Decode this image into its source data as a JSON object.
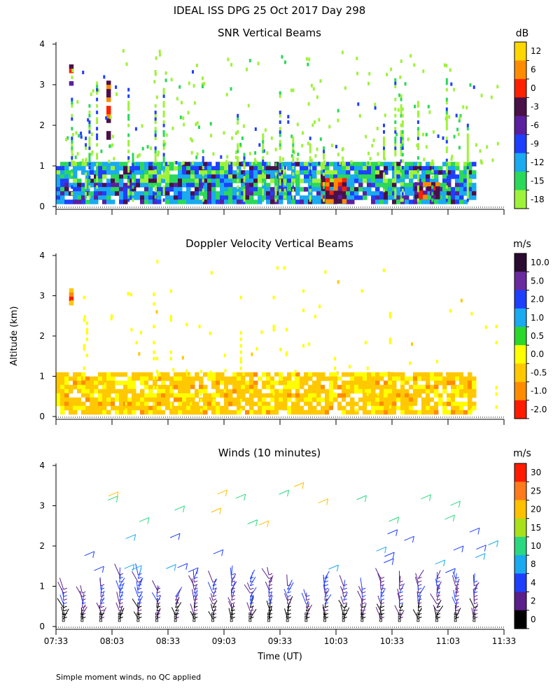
{
  "figure": {
    "title": "IDEAL ISS DPG  25 Oct 2017 Day 298",
    "ylabel": "Altitude (km)",
    "xlabel": "Time (UT)",
    "footnote": "Simple moment winds, no QC applied"
  },
  "chart_data": [
    {
      "type": "heatmap",
      "title": "SNR Vertical Beams",
      "ylabel": "Altitude (km)",
      "ylim": [
        0,
        4
      ],
      "yticks": [
        "0",
        "1",
        "2",
        "3",
        "4"
      ],
      "xlim": [
        "07:33",
        "11:33"
      ],
      "colorbar": {
        "unit": "dB",
        "labels": [
          "12",
          "6",
          "0",
          "-3",
          "-6",
          "-9",
          "-12",
          "-15",
          "-18"
        ],
        "colors": [
          "#ffd700",
          "#ff8c00",
          "#ff2000",
          "#4a1048",
          "#5a1fa0",
          "#1f3fff",
          "#19aaf0",
          "#2ad85a",
          "#9ef23a"
        ]
      },
      "features": [
        {
          "time": "07:33-11:18",
          "altitude_km": [
            0.1,
            1.1
          ],
          "level_db": "-15 to -9",
          "note": "continuous low-level echo"
        },
        {
          "time": "07:40",
          "altitude_km": [
            3.0,
            3.5
          ],
          "level_db": "6"
        },
        {
          "time": "08:00",
          "altitude_km": [
            1.7,
            3.1
          ],
          "level_db": "-9"
        },
        {
          "time": "09:55-10:08",
          "altitude_km": [
            0.15,
            0.7
          ],
          "level_db": "-3 to 6"
        },
        {
          "time": "10:45-10:58",
          "altitude_km": [
            0.2,
            0.6
          ],
          "level_db": "-3"
        }
      ]
    },
    {
      "type": "heatmap",
      "title": "Doppler Velocity Vertical Beams",
      "ylabel": "Altitude (km)",
      "ylim": [
        0,
        4
      ],
      "yticks": [
        "0",
        "1",
        "2",
        "3",
        "4"
      ],
      "xlim": [
        "07:33",
        "11:33"
      ],
      "colorbar": {
        "unit": "m/s",
        "labels": [
          "10.0",
          "5.0",
          "2.0",
          "1.0",
          "0.5",
          "0.0",
          "-0.5",
          "-1.0",
          "-2.0"
        ],
        "colors": [
          "#2a0a30",
          "#6a2aa0",
          "#1f3fff",
          "#19aaf0",
          "#2ad82a",
          "#ffff00",
          "#ffc800",
          "#ff8c00",
          "#ff1a00"
        ]
      },
      "features": [
        {
          "time": "07:33-11:18",
          "altitude_km": [
            0.1,
            1.1
          ],
          "velocity_ms": "-0.5 to 0.0",
          "note": "mostly downward weak motion"
        },
        {
          "time": "07:40",
          "altitude_km": [
            2.8,
            3.5
          ],
          "velocity_ms": "-0.5"
        }
      ]
    },
    {
      "type": "scatter",
      "title": "Winds (10 minutes)",
      "ylabel": "Altitude (km)",
      "xlabel": "Time (UT)",
      "ylim": [
        0,
        4
      ],
      "yticks": [
        "0",
        "1",
        "2",
        "3",
        "4"
      ],
      "xlim": [
        "07:33",
        "11:33"
      ],
      "xticks": [
        "07:33",
        "08:03",
        "08:33",
        "09:03",
        "09:33",
        "10:03",
        "10:33",
        "11:03",
        "11:33"
      ],
      "colorbar": {
        "unit": "m/s",
        "labels": [
          "30",
          "25",
          "20",
          "15",
          "10",
          "8",
          "4",
          "2",
          "0"
        ],
        "colors": [
          "#ff1a00",
          "#ff7a1a",
          "#ffc000",
          "#a8e01a",
          "#2ad880",
          "#19aaf0",
          "#1f3fff",
          "#5a1f8a",
          "#000000"
        ]
      },
      "profile_times": [
        "07:37",
        "07:47",
        "07:57",
        "08:07",
        "08:17",
        "08:27",
        "08:37",
        "08:47",
        "08:57",
        "09:07",
        "09:17",
        "09:27",
        "09:37",
        "09:47",
        "09:57",
        "10:07",
        "10:17",
        "10:27",
        "10:37",
        "10:47",
        "10:57",
        "11:07",
        "11:17"
      ],
      "wind_speed_ms": {
        "0.2-1.2 km": "0-8",
        "1.5-2.3 km": "10-25",
        "2.5-3.4 km": "15-30"
      }
    }
  ]
}
